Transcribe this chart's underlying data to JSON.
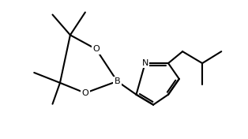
{
  "background": "#ffffff",
  "line_color": "#000000",
  "lw": 1.5,
  "font_size": 8.0,
  "figsize": [
    3.14,
    1.76
  ],
  "dpi": 100,
  "xlim": [
    -0.3,
    9.0
  ],
  "ylim": [
    -0.2,
    5.8
  ]
}
